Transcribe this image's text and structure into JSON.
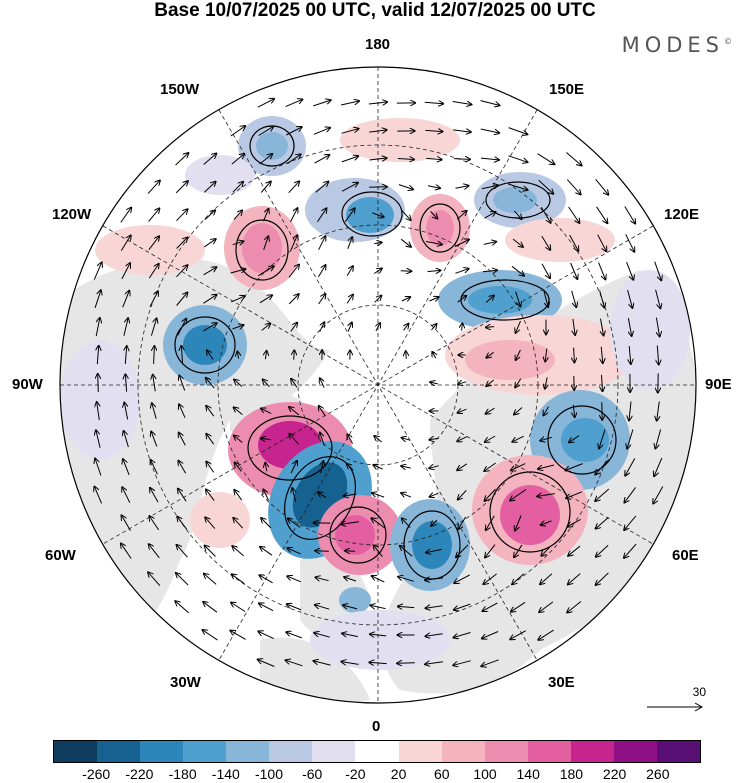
{
  "title": "Base 10/07/2025 00 UTC, valid 12/07/2025 00 UTC",
  "brand": "MODES",
  "brand_mark": "©",
  "longitude_labels": {
    "top": "180",
    "top_left": "150W",
    "top_right": "150E",
    "upper_left": "120W",
    "upper_right": "120E",
    "left": "90W",
    "right": "90E",
    "lower_left": "60W",
    "lower_right": "60E",
    "bottom_left": "30W",
    "bottom_right": "30E",
    "bottom": "0"
  },
  "reference_vector": {
    "label": "30"
  },
  "colorbar": {
    "colors": [
      "#0e3d5f",
      "#15618f",
      "#2d86ba",
      "#4f9fcf",
      "#87b6d9",
      "#bac9e3",
      "#e1dff0",
      "#ffffff",
      "#f9d6d6",
      "#f3b3bf",
      "#ec8db0",
      "#e35fa1",
      "#c8248f",
      "#8f0f85",
      "#5a0f76"
    ],
    "tick_labels": [
      "-260",
      "-220",
      "-180",
      "-140",
      "-100",
      "-60",
      "-20",
      "20",
      "60",
      "100",
      "140",
      "180",
      "220",
      "260"
    ]
  },
  "map": {
    "projection": "north-polar-stereographic",
    "land_color": "#e6e6e6",
    "ocean_color": "#ffffff",
    "graticule": "dashed",
    "vectors": "wind arrows"
  }
}
